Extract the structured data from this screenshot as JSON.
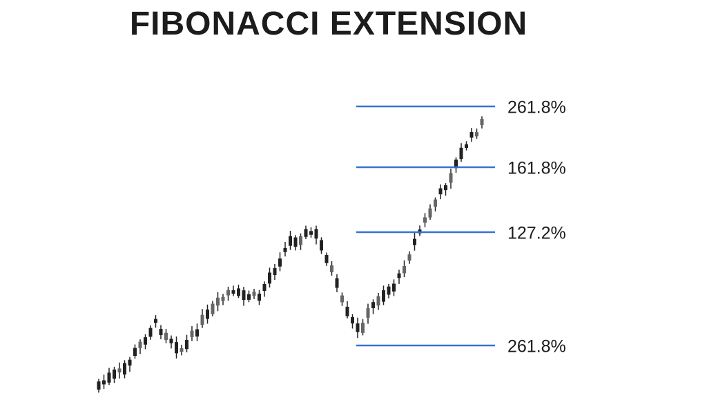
{
  "title": "FIBONACCI EXTENSION",
  "levels": [
    "261.8%",
    "161.8%",
    "127.2%",
    "261.8%"
  ]
}
